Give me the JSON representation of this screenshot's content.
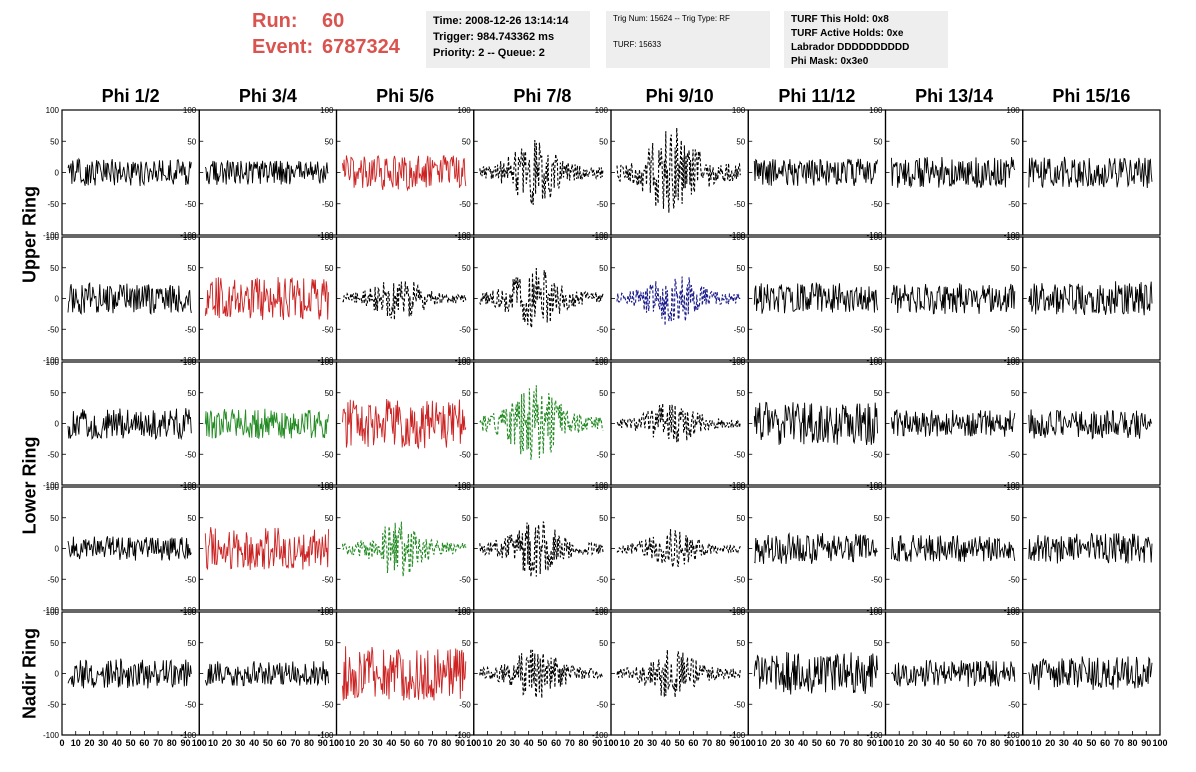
{
  "header": {
    "run_label": "Run:",
    "run_value": "60",
    "event_label": "Event:",
    "event_value": "6787324",
    "time_line": "Time: 2008-12-26 13:14:14",
    "trigger_line": "Trigger: 984.743362 ms",
    "priority_line": "Priority: 2 -- Queue: 2",
    "trig_num_line": "Trig Num: 15624 -- Trig Type: RF",
    "turf_line": "TURF: 15633",
    "turf_hold_line": "TURF This Hold: 0x8",
    "turf_active_line": "TURF Active Holds: 0xe",
    "labrador_line": "Labrador DDDDDDDDDD",
    "phi_mask_line": "Phi Mask: 0x3e0"
  },
  "colors": {
    "header_red": "#d9534f",
    "trace_black": "#000000",
    "trace_red": "#cc2222",
    "trace_green": "#228b22",
    "trace_blue": "#1a1a8c"
  },
  "ring_labels": [
    "Upper Ring",
    "Lower Ring",
    "Nadir Ring"
  ],
  "chart_data": {
    "type": "line",
    "phi_sectors": [
      "Phi 1/2",
      "Phi 3/4",
      "Phi 5/6",
      "Phi 7/8",
      "Phi 9/10",
      "Phi 11/12",
      "Phi 13/14",
      "Phi 15/16"
    ],
    "rows": 5,
    "ylim": [
      -100,
      100
    ],
    "y_ticks": [
      -100,
      -50,
      0,
      50,
      100
    ],
    "xlim": [
      0,
      100
    ],
    "x_ticks": [
      0,
      10,
      20,
      30,
      40,
      50,
      60,
      70,
      80,
      90,
      100
    ],
    "panels": [
      [
        {
          "color": "black",
          "style": "solid",
          "amp": 22
        },
        {
          "color": "black",
          "style": "solid",
          "amp": 20
        },
        {
          "color": "red",
          "style": "solid",
          "amp": 28
        },
        {
          "color": "black",
          "style": "dashed",
          "amp": 50
        },
        {
          "color": "black",
          "style": "dashed",
          "amp": 70
        },
        {
          "color": "black",
          "style": "solid",
          "amp": 22
        },
        {
          "color": "black",
          "style": "solid",
          "amp": 25
        },
        {
          "color": "black",
          "style": "solid",
          "amp": 25
        }
      ],
      [
        {
          "color": "black",
          "style": "solid",
          "amp": 25
        },
        {
          "color": "red",
          "style": "solid",
          "amp": 35
        },
        {
          "color": "black",
          "style": "dashed",
          "amp": 35
        },
        {
          "color": "black",
          "style": "dashed",
          "amp": 50
        },
        {
          "color": "blue",
          "style": "dashed",
          "amp": 45
        },
        {
          "color": "black",
          "style": "solid",
          "amp": 25
        },
        {
          "color": "black",
          "style": "solid",
          "amp": 25
        },
        {
          "color": "black",
          "style": "solid",
          "amp": 28
        }
      ],
      [
        {
          "color": "black",
          "style": "solid",
          "amp": 25
        },
        {
          "color": "green",
          "style": "solid",
          "amp": 25
        },
        {
          "color": "red",
          "style": "solid",
          "amp": 40
        },
        {
          "color": "green",
          "style": "dashed",
          "amp": 60
        },
        {
          "color": "black",
          "style": "dashed",
          "amp": 35
        },
        {
          "color": "black",
          "style": "solid",
          "amp": 35
        },
        {
          "color": "black",
          "style": "solid",
          "amp": 22
        },
        {
          "color": "black",
          "style": "solid",
          "amp": 25
        }
      ],
      [
        {
          "color": "black",
          "style": "solid",
          "amp": 20
        },
        {
          "color": "red",
          "style": "solid",
          "amp": 35
        },
        {
          "color": "green",
          "style": "dashed",
          "amp": 45
        },
        {
          "color": "black",
          "style": "dashed",
          "amp": 45
        },
        {
          "color": "black",
          "style": "dashed",
          "amp": 30
        },
        {
          "color": "black",
          "style": "solid",
          "amp": 25
        },
        {
          "color": "black",
          "style": "solid",
          "amp": 22
        },
        {
          "color": "black",
          "style": "solid",
          "amp": 25
        }
      ],
      [
        {
          "color": "black",
          "style": "solid",
          "amp": 25
        },
        {
          "color": "black",
          "style": "solid",
          "amp": 20
        },
        {
          "color": "red",
          "style": "solid",
          "amp": 45
        },
        {
          "color": "black",
          "style": "dashed",
          "amp": 40
        },
        {
          "color": "black",
          "style": "dashed",
          "amp": 40
        },
        {
          "color": "black",
          "style": "solid",
          "amp": 35
        },
        {
          "color": "black",
          "style": "solid",
          "amp": 22
        },
        {
          "color": "black",
          "style": "solid",
          "amp": 28
        }
      ]
    ]
  }
}
